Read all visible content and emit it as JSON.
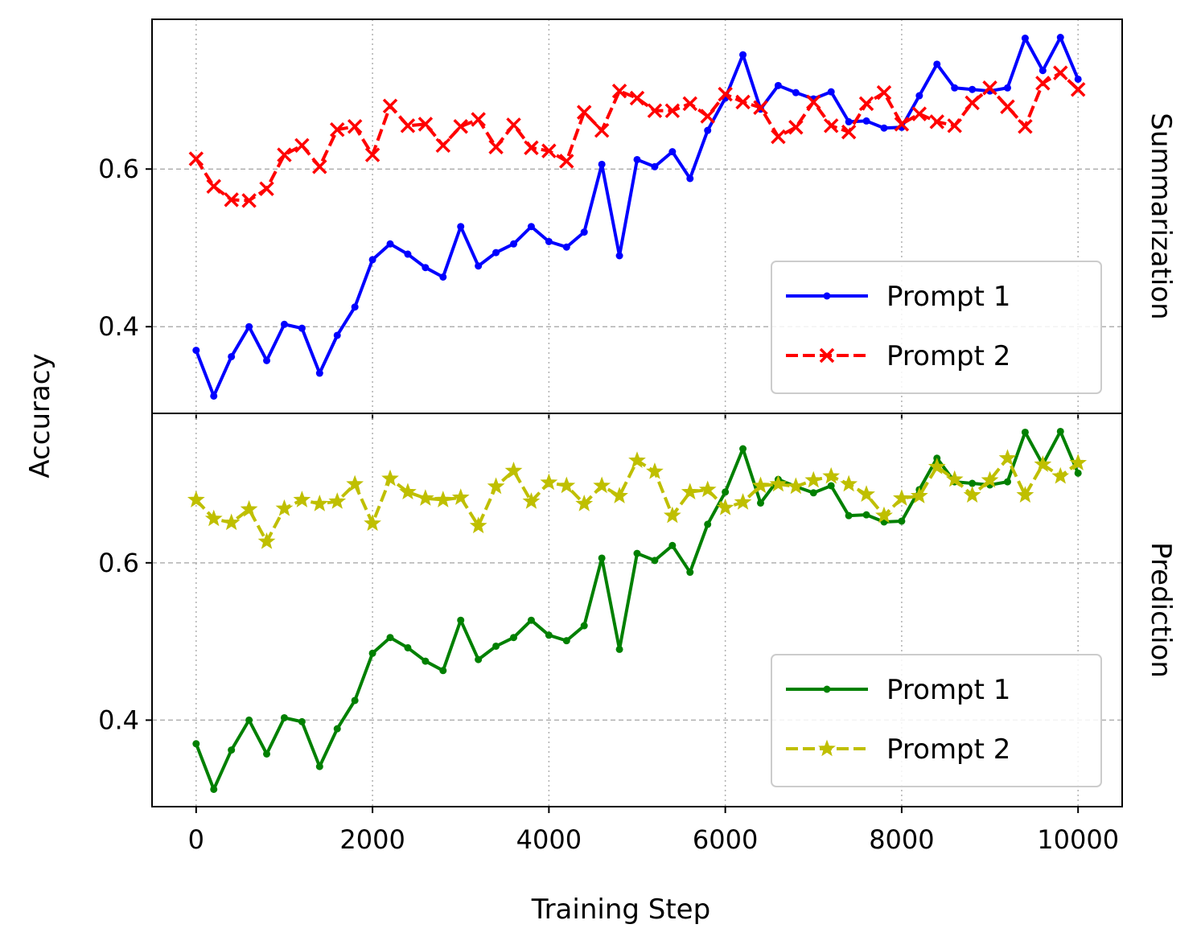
{
  "figure": {
    "xlabel": "Training Step",
    "ylabel": "Accuracy"
  },
  "chart_data": [
    {
      "type": "line",
      "panel_label": "Summarization",
      "xlabel": "Training Step",
      "ylabel": "Accuracy",
      "xlim": [
        -500,
        10500
      ],
      "ylim": [
        0.29,
        0.79
      ],
      "xticks": [
        0,
        2000,
        4000,
        6000,
        8000,
        10000
      ],
      "xtick_labels": [
        "0",
        "2000",
        "4000",
        "6000",
        "8000",
        "10000"
      ],
      "yticks": [
        0.4,
        0.6
      ],
      "ytick_labels": [
        "0.4",
        "0.6"
      ],
      "grid": true,
      "legend_position": "lower-right",
      "x": [
        0,
        200,
        400,
        600,
        800,
        1000,
        1200,
        1400,
        1600,
        1800,
        2000,
        2200,
        2400,
        2600,
        2800,
        3000,
        3200,
        3400,
        3600,
        3800,
        4000,
        4200,
        4400,
        4600,
        4800,
        5000,
        5200,
        5400,
        5600,
        5800,
        6000,
        6200,
        6400,
        6600,
        6800,
        7000,
        7200,
        7400,
        7600,
        7800,
        8000,
        8200,
        8400,
        8600,
        8800,
        9000,
        9200,
        9400,
        9600,
        9800,
        10000
      ],
      "series": [
        {
          "name": "Prompt 1",
          "color": "#0000ff",
          "line_style": "solid",
          "marker": "dot",
          "values": [
            0.37,
            0.312,
            0.362,
            0.4,
            0.357,
            0.403,
            0.398,
            0.341,
            0.389,
            0.425,
            0.485,
            0.505,
            0.492,
            0.475,
            0.463,
            0.527,
            0.477,
            0.494,
            0.505,
            0.527,
            0.508,
            0.501,
            0.52,
            0.606,
            0.49,
            0.612,
            0.603,
            0.622,
            0.588,
            0.649,
            0.69,
            0.745,
            0.676,
            0.706,
            0.697,
            0.689,
            0.698,
            0.66,
            0.661,
            0.652,
            0.653,
            0.693,
            0.733,
            0.703,
            0.701,
            0.699,
            0.703,
            0.766,
            0.725,
            0.767,
            0.714
          ]
        },
        {
          "name": "Prompt 2",
          "color": "#ff0000",
          "line_style": "dashed",
          "marker": "x",
          "values": [
            0.613,
            0.578,
            0.561,
            0.56,
            0.575,
            0.618,
            0.63,
            0.603,
            0.65,
            0.654,
            0.618,
            0.68,
            0.655,
            0.657,
            0.63,
            0.654,
            0.663,
            0.628,
            0.656,
            0.627,
            0.623,
            0.61,
            0.672,
            0.649,
            0.699,
            0.69,
            0.674,
            0.674,
            0.683,
            0.667,
            0.695,
            0.685,
            0.678,
            0.641,
            0.653,
            0.685,
            0.655,
            0.647,
            0.683,
            0.697,
            0.657,
            0.67,
            0.66,
            0.655,
            0.684,
            0.703,
            0.679,
            0.654,
            0.709,
            0.722,
            0.701
          ]
        }
      ]
    },
    {
      "type": "line",
      "panel_label": "Prediction",
      "xlabel": "Training Step",
      "ylabel": "Accuracy",
      "xlim": [
        -500,
        10500
      ],
      "ylim": [
        0.29,
        0.79
      ],
      "xticks": [
        0,
        2000,
        4000,
        6000,
        8000,
        10000
      ],
      "xtick_labels": [
        "0",
        "2000",
        "4000",
        "6000",
        "8000",
        "10000"
      ],
      "yticks": [
        0.4,
        0.6
      ],
      "ytick_labels": [
        "0.4",
        "0.6"
      ],
      "grid": true,
      "legend_position": "lower-right",
      "x": [
        0,
        200,
        400,
        600,
        800,
        1000,
        1200,
        1400,
        1600,
        1800,
        2000,
        2200,
        2400,
        2600,
        2800,
        3000,
        3200,
        3400,
        3600,
        3800,
        4000,
        4200,
        4400,
        4600,
        4800,
        5000,
        5200,
        5400,
        5600,
        5800,
        6000,
        6200,
        6400,
        6600,
        6800,
        7000,
        7200,
        7400,
        7600,
        7800,
        8000,
        8200,
        8400,
        8600,
        8800,
        9000,
        9200,
        9400,
        9600,
        9800,
        10000
      ],
      "series": [
        {
          "name": "Prompt 1",
          "color": "#008000",
          "line_style": "solid",
          "marker": "dot",
          "values": [
            0.37,
            0.312,
            0.362,
            0.4,
            0.357,
            0.403,
            0.398,
            0.341,
            0.389,
            0.425,
            0.485,
            0.505,
            0.492,
            0.475,
            0.463,
            0.527,
            0.477,
            0.494,
            0.505,
            0.527,
            0.508,
            0.501,
            0.52,
            0.606,
            0.49,
            0.612,
            0.603,
            0.622,
            0.588,
            0.649,
            0.69,
            0.745,
            0.676,
            0.706,
            0.697,
            0.689,
            0.698,
            0.66,
            0.661,
            0.652,
            0.653,
            0.693,
            0.733,
            0.703,
            0.701,
            0.699,
            0.703,
            0.766,
            0.725,
            0.767,
            0.714
          ]
        },
        {
          "name": "Prompt 2",
          "color": "#bfbf00",
          "line_style": "dashed",
          "marker": "star",
          "values": [
            0.68,
            0.656,
            0.651,
            0.668,
            0.627,
            0.669,
            0.68,
            0.675,
            0.678,
            0.7,
            0.65,
            0.707,
            0.69,
            0.682,
            0.68,
            0.683,
            0.647,
            0.697,
            0.717,
            0.678,
            0.702,
            0.698,
            0.675,
            0.698,
            0.685,
            0.73,
            0.716,
            0.66,
            0.69,
            0.693,
            0.67,
            0.677,
            0.698,
            0.7,
            0.697,
            0.705,
            0.71,
            0.7,
            0.687,
            0.66,
            0.682,
            0.685,
            0.722,
            0.706,
            0.686,
            0.705,
            0.733,
            0.686,
            0.725,
            0.71,
            0.727
          ]
        }
      ]
    }
  ]
}
